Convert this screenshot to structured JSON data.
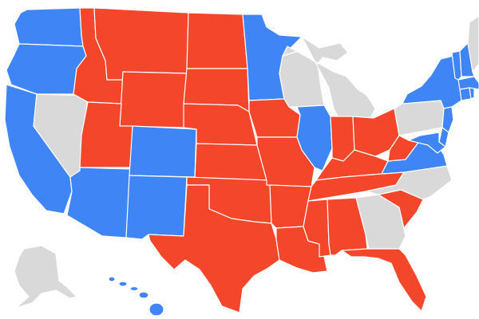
{
  "map": {
    "colors": {
      "red": "#f4462a",
      "blue": "#3f85f5",
      "gray": "#d9d9d9",
      "water": "#ffffff",
      "border": "#ffffff"
    },
    "states": [
      {
        "code": "WA",
        "fill": "blue"
      },
      {
        "code": "OR",
        "fill": "blue"
      },
      {
        "code": "CA",
        "fill": "blue"
      },
      {
        "code": "NV",
        "fill": "gray"
      },
      {
        "code": "ID",
        "fill": "red"
      },
      {
        "code": "MT",
        "fill": "red"
      },
      {
        "code": "WY",
        "fill": "red"
      },
      {
        "code": "UT",
        "fill": "red"
      },
      {
        "code": "AZ",
        "fill": "blue"
      },
      {
        "code": "CO",
        "fill": "blue"
      },
      {
        "code": "NM",
        "fill": "blue"
      },
      {
        "code": "ND",
        "fill": "red"
      },
      {
        "code": "SD",
        "fill": "red"
      },
      {
        "code": "NE",
        "fill": "red"
      },
      {
        "code": "KS",
        "fill": "red"
      },
      {
        "code": "OK",
        "fill": "red"
      },
      {
        "code": "TX",
        "fill": "red"
      },
      {
        "code": "MN",
        "fill": "blue"
      },
      {
        "code": "IA",
        "fill": "red"
      },
      {
        "code": "MO",
        "fill": "red"
      },
      {
        "code": "AR",
        "fill": "red"
      },
      {
        "code": "LA",
        "fill": "red"
      },
      {
        "code": "WI",
        "fill": "gray"
      },
      {
        "code": "MI",
        "fill": "gray"
      },
      {
        "code": "IL",
        "fill": "blue"
      },
      {
        "code": "IN",
        "fill": "red"
      },
      {
        "code": "OH",
        "fill": "red"
      },
      {
        "code": "KY",
        "fill": "red"
      },
      {
        "code": "TN",
        "fill": "red"
      },
      {
        "code": "MS",
        "fill": "red"
      },
      {
        "code": "AL",
        "fill": "red"
      },
      {
        "code": "GA",
        "fill": "gray"
      },
      {
        "code": "FL",
        "fill": "red"
      },
      {
        "code": "SC",
        "fill": "red"
      },
      {
        "code": "NC",
        "fill": "gray"
      },
      {
        "code": "VA",
        "fill": "blue"
      },
      {
        "code": "WV",
        "fill": "red"
      },
      {
        "code": "PA",
        "fill": "gray"
      },
      {
        "code": "NY",
        "fill": "blue"
      },
      {
        "code": "NJ",
        "fill": "blue"
      },
      {
        "code": "DE",
        "fill": "blue"
      },
      {
        "code": "MD",
        "fill": "blue"
      },
      {
        "code": "CT",
        "fill": "blue"
      },
      {
        "code": "RI",
        "fill": "blue"
      },
      {
        "code": "MA",
        "fill": "blue"
      },
      {
        "code": "VT",
        "fill": "blue"
      },
      {
        "code": "NH",
        "fill": "blue"
      },
      {
        "code": "ME",
        "fill": "gray"
      },
      {
        "code": "AK",
        "fill": "gray"
      },
      {
        "code": "HI",
        "fill": "blue"
      }
    ]
  }
}
